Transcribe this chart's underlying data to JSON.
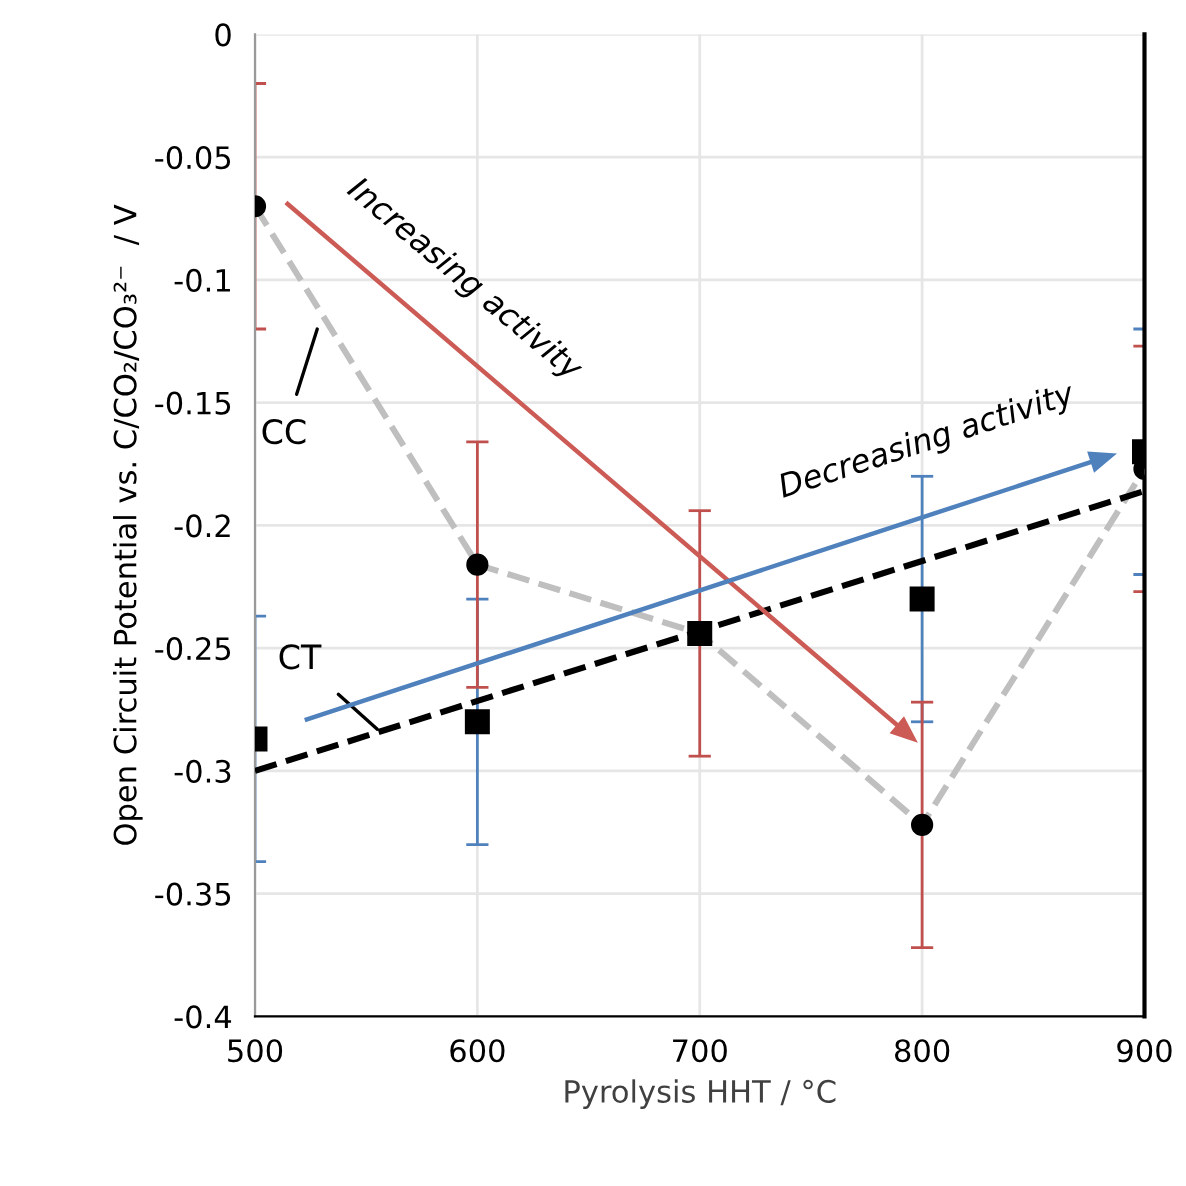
{
  "chart_data": {
    "type": "line",
    "xlabel": "Pyrolysis HHT / °C",
    "ylabel": "Open Circuit Potential vs. C/CO₂/CO₃²⁻  / V",
    "x": [
      500,
      600,
      700,
      800,
      900
    ],
    "xlim": [
      500,
      900
    ],
    "xticks": [
      500,
      600,
      700,
      800,
      900
    ],
    "ylim": [
      -0.4,
      0
    ],
    "yticks": [
      -0.4,
      -0.35,
      -0.3,
      -0.25,
      -0.2,
      -0.15,
      -0.1,
      -0.05,
      0
    ],
    "grid": true,
    "series": [
      {
        "color": "#bfbfbf",
        "line_style": "dashed",
        "marker": "circle",
        "values": [
          -0.07,
          -0.216,
          -0.244,
          -0.322,
          -0.177
        ],
        "errors": [
          0.05,
          0.05,
          0.05,
          0.05,
          0.05
        ]
      },
      {
        "type": "scatter",
        "color": "#000000",
        "marker": "square",
        "values": [
          -0.287,
          -0.28,
          -0.244,
          -0.23,
          -0.17
        ],
        "errors": [
          0.05,
          0.05,
          null,
          0.05,
          0.05
        ]
      },
      {
        "color": "#000000",
        "line_style": "dashed",
        "marker": "none",
        "x": [
          500,
          900
        ],
        "values": [
          -0.3,
          -0.186
        ]
      }
    ],
    "annotations": [
      {
        "text": "CC",
        "x": 528,
        "y": -0.12
      },
      {
        "text": "CT",
        "x": 555,
        "y": -0.283
      },
      "Increasing activity",
      "Decreasing activity"
    ]
  }
}
